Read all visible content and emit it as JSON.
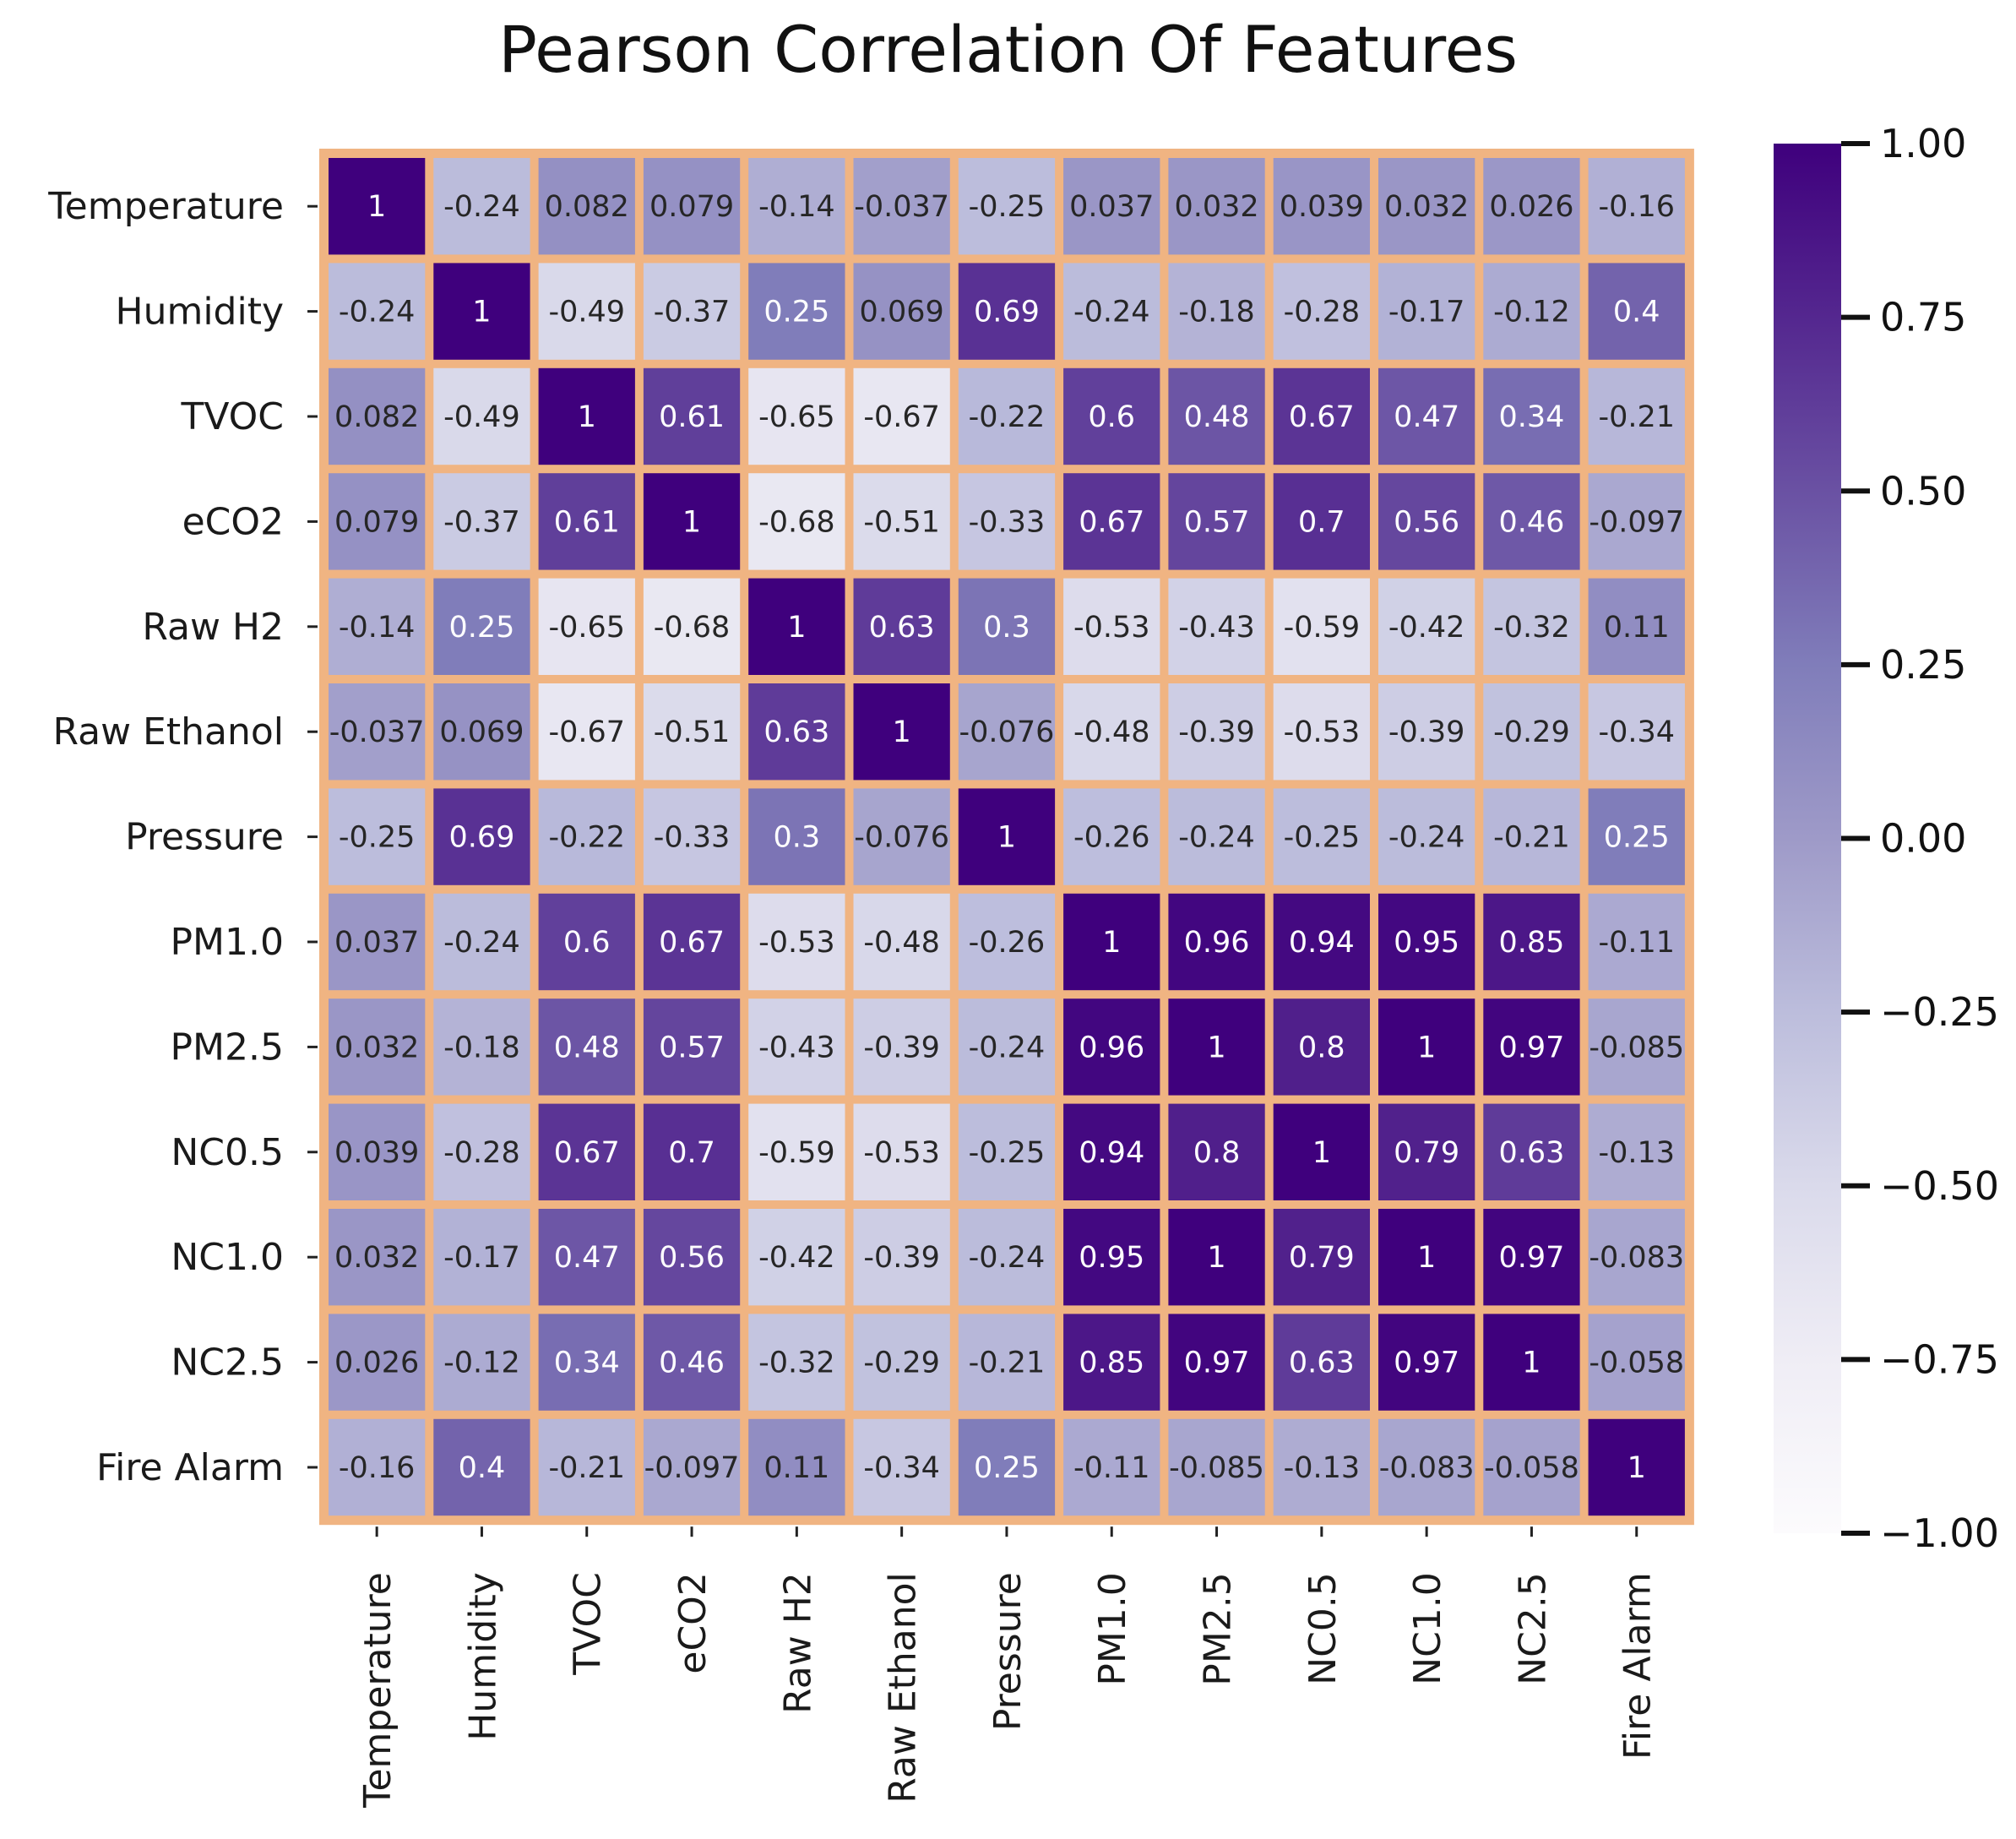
{
  "chart_data": {
    "type": "heatmap",
    "title": "Pearson Correlation Of Features",
    "xlabel": "",
    "ylabel": "",
    "row_labels": [
      "Temperature",
      "Humidity",
      "TVOC",
      "eCO2",
      "Raw H2",
      "Raw Ethanol",
      "Pressure",
      "PM1.0",
      "PM2.5",
      "NC0.5",
      "NC1.0",
      "NC2.5",
      "Fire Alarm"
    ],
    "col_labels": [
      "Temperature",
      "Humidity",
      "TVOC",
      "eCO2",
      "Raw H2",
      "Raw Ethanol",
      "Pressure",
      "PM1.0",
      "PM2.5",
      "NC0.5",
      "NC1.0",
      "NC2.5",
      "Fire Alarm"
    ],
    "values": [
      [
        1,
        -0.24,
        0.082,
        0.079,
        -0.14,
        -0.037,
        -0.25,
        0.037,
        0.032,
        0.039,
        0.032,
        0.026,
        -0.16
      ],
      [
        -0.24,
        1,
        -0.49,
        -0.37,
        0.25,
        0.069,
        0.69,
        -0.24,
        -0.18,
        -0.28,
        -0.17,
        -0.12,
        0.4
      ],
      [
        0.082,
        -0.49,
        1,
        0.61,
        -0.65,
        -0.67,
        -0.22,
        0.6,
        0.48,
        0.67,
        0.47,
        0.34,
        -0.21
      ],
      [
        0.079,
        -0.37,
        0.61,
        1,
        -0.68,
        -0.51,
        -0.33,
        0.67,
        0.57,
        0.7,
        0.56,
        0.46,
        -0.097
      ],
      [
        -0.14,
        0.25,
        -0.65,
        -0.68,
        1,
        0.63,
        0.3,
        -0.53,
        -0.43,
        -0.59,
        -0.42,
        -0.32,
        0.11
      ],
      [
        -0.037,
        0.069,
        -0.67,
        -0.51,
        0.63,
        1,
        -0.076,
        -0.48,
        -0.39,
        -0.53,
        -0.39,
        -0.29,
        -0.34
      ],
      [
        -0.25,
        0.69,
        -0.22,
        -0.33,
        0.3,
        -0.076,
        1,
        -0.26,
        -0.24,
        -0.25,
        -0.24,
        -0.21,
        0.25
      ],
      [
        0.037,
        -0.24,
        0.6,
        0.67,
        -0.53,
        -0.48,
        -0.26,
        1,
        0.96,
        0.94,
        0.95,
        0.85,
        -0.11
      ],
      [
        0.032,
        -0.18,
        0.48,
        0.57,
        -0.43,
        -0.39,
        -0.24,
        0.96,
        1,
        0.8,
        1,
        0.97,
        -0.085
      ],
      [
        0.039,
        -0.28,
        0.67,
        0.7,
        -0.59,
        -0.53,
        -0.25,
        0.94,
        0.8,
        1,
        0.79,
        0.63,
        -0.13
      ],
      [
        0.032,
        -0.17,
        0.47,
        0.56,
        -0.42,
        -0.39,
        -0.24,
        0.95,
        1,
        0.79,
        1,
        0.97,
        -0.083
      ],
      [
        0.026,
        -0.12,
        0.34,
        0.46,
        -0.32,
        -0.29,
        -0.21,
        0.85,
        0.97,
        0.63,
        0.97,
        1,
        -0.058
      ],
      [
        -0.16,
        0.4,
        -0.21,
        -0.097,
        0.11,
        -0.34,
        0.25,
        -0.11,
        -0.085,
        -0.13,
        -0.083,
        -0.058,
        1
      ]
    ],
    "vmin": -1.0,
    "vmax": 1.0,
    "colormap": "Purples",
    "colorbar_ticks": [
      1.0,
      0.75,
      0.5,
      0.25,
      0.0,
      -0.25,
      -0.5,
      -0.75,
      -1.0
    ],
    "colorbar_tick_labels": [
      "1.00",
      "0.75",
      "0.50",
      "0.25",
      "0.00",
      "−0.25",
      "−0.50",
      "−0.75",
      "−1.00"
    ],
    "grid_line_color": "#F0B482"
  }
}
